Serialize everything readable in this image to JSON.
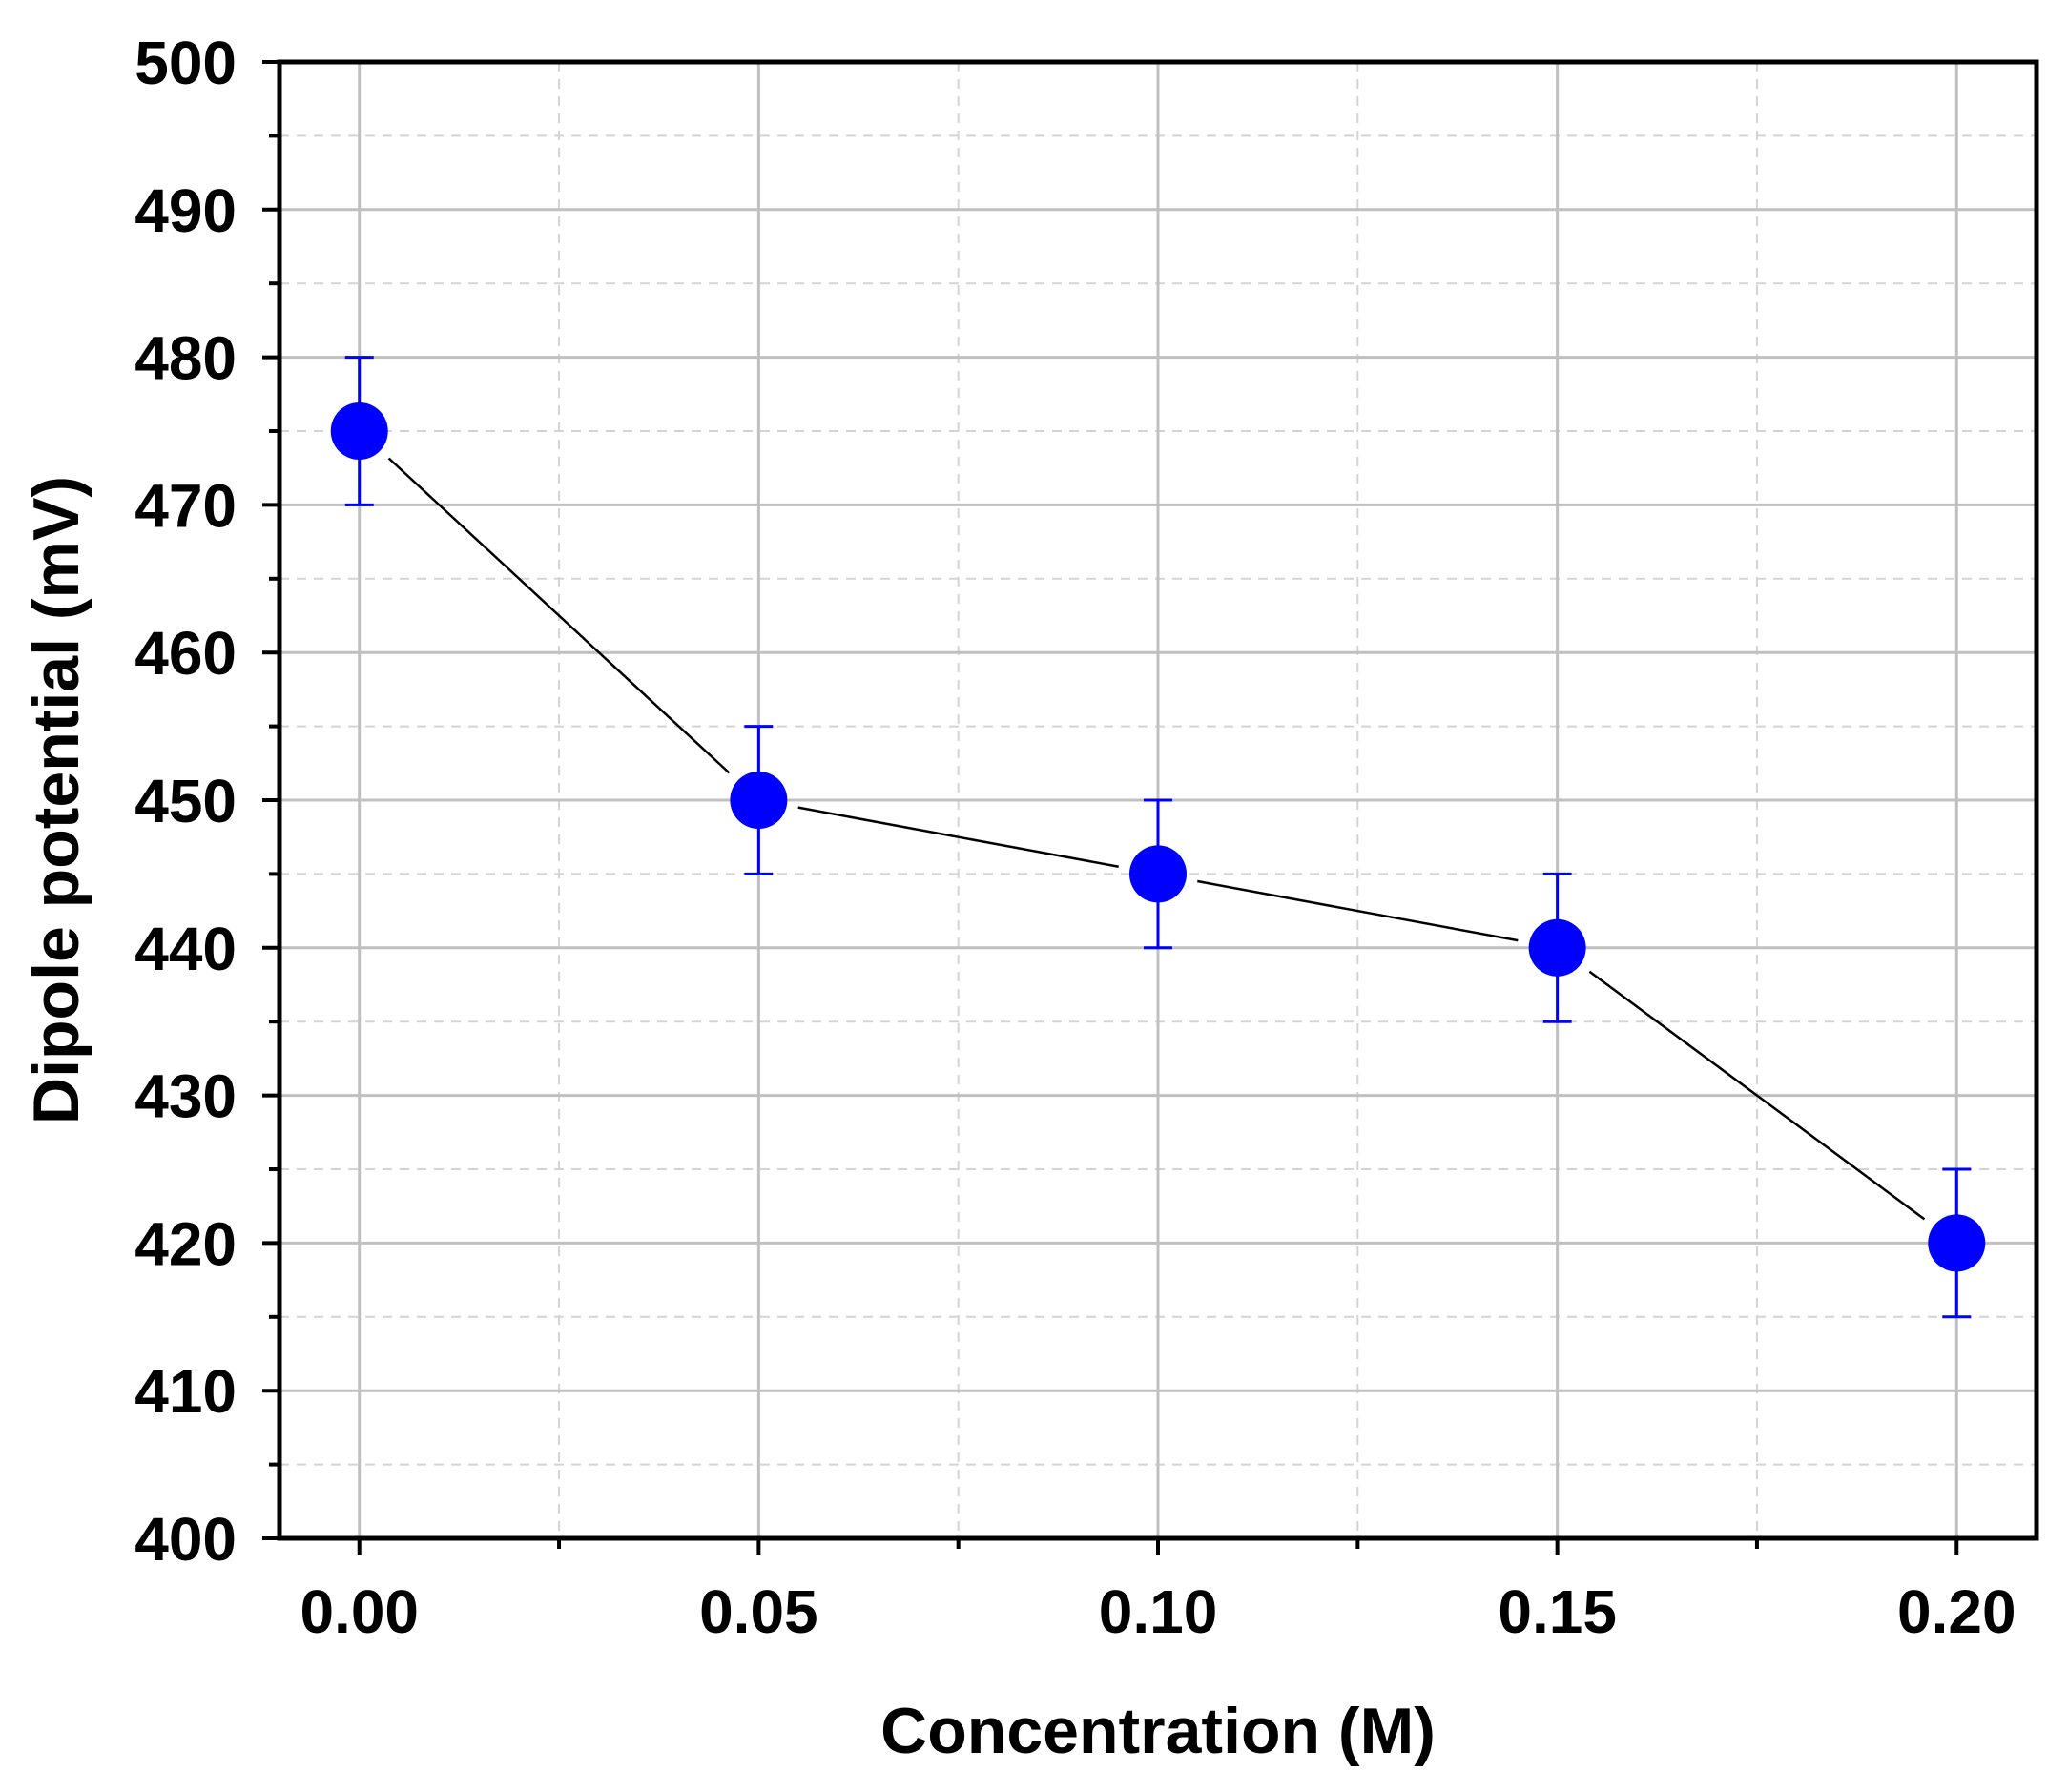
{
  "chart_data": {
    "type": "scatter",
    "title": "",
    "xlabel": "Concentration (M)",
    "ylabel": "Dipole potential (mV)",
    "xlim": [
      -0.01,
      0.21
    ],
    "ylim": [
      400,
      500
    ],
    "x_ticks": [
      0.0,
      0.05,
      0.1,
      0.15,
      0.2
    ],
    "x_tick_labels": [
      "0.00",
      "0.05",
      "0.10",
      "0.15",
      "0.20"
    ],
    "x_minor_ticks": [
      0.025,
      0.075,
      0.125,
      0.175
    ],
    "y_ticks": [
      400,
      410,
      420,
      430,
      440,
      450,
      460,
      470,
      480,
      490,
      500
    ],
    "y_tick_labels": [
      "400",
      "410",
      "420",
      "430",
      "440",
      "450",
      "460",
      "470",
      "480",
      "490",
      "500"
    ],
    "y_minor_ticks": [
      405,
      415,
      425,
      435,
      445,
      455,
      465,
      475,
      485,
      495
    ],
    "grid": true,
    "connect_points": true,
    "series": [
      {
        "x": [
          0.0,
          0.05,
          0.1,
          0.15,
          0.2
        ],
        "y": [
          475,
          450,
          445,
          440,
          420
        ],
        "error": [
          5,
          5,
          5,
          5,
          5
        ],
        "color": "#0000ff",
        "line_color": "#000000"
      }
    ]
  }
}
